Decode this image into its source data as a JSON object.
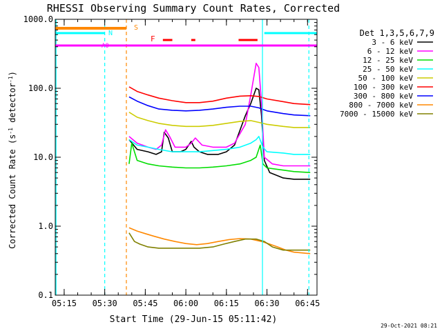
{
  "chart_data": {
    "type": "line",
    "title": "RHESSI Observing Summary Count Rates, Corrected",
    "xlabel": "Start Time (29-Jun-15 05:11:42)",
    "ylabel": "Corrected Count Rate (s⁻¹ detector⁻¹)",
    "ylabel_main": "Corrected Count Rate (s",
    "ylabel_sup1": "-1",
    "ylabel_mid": " detector",
    "ylabel_sup2": "-1",
    "ylabel_end": ")",
    "yscale": "log",
    "ylim": [
      0.1,
      1000
    ],
    "xlim": [
      "05:11:42",
      "06:48:30"
    ],
    "xticks": [
      "05:15",
      "05:30",
      "05:45",
      "06:00",
      "06:15",
      "06:30",
      "06:45"
    ],
    "yticks": [
      "0.1",
      "1.0",
      "10.0",
      "100.0",
      "1000.0"
    ],
    "footer": "29-Oct-2021 08:21",
    "legend": {
      "title": "Det 1,3,5,6,7,9",
      "position": "right",
      "entries": [
        {
          "label": "3 - 6 keV",
          "color": "#000000"
        },
        {
          "label": "6 - 12 keV",
          "color": "#ff00ff"
        },
        {
          "label": "12 - 25 keV",
          "color": "#00dd00"
        },
        {
          "label": "25 - 50 keV",
          "color": "#00ffff"
        },
        {
          "label": "50 - 100 keV",
          "color": "#cccc00"
        },
        {
          "label": "100 - 300 keV",
          "color": "#ff0000"
        },
        {
          "label": "300 - 800 keV",
          "color": "#0000ff"
        },
        {
          "label": "800 - 7000 keV",
          "color": "#ff8800"
        },
        {
          "label": "7000 - 15000 keV",
          "color": "#808000"
        }
      ]
    },
    "flags": {
      "S_label": "S",
      "N_label": "N",
      "F_label": "F",
      "AO_label": "A0",
      "S_bar": {
        "start": "05:11:42",
        "end": "05:38:00",
        "color": "#ff8800"
      },
      "N_bars": [
        {
          "start": "05:11:42",
          "end": "05:30:00",
          "color": "#00ffff"
        },
        {
          "start": "06:29:00",
          "end": "06:48:30",
          "color": "#00ffff"
        }
      ],
      "F_bars": [
        {
          "start": "05:51:30",
          "end": "05:55:00",
          "color": "#ff0000"
        },
        {
          "start": "06:02:00",
          "end": "06:03:30",
          "color": "#ff0000"
        },
        {
          "start": "06:19:30",
          "end": "06:26:30",
          "color": "#ff0000"
        }
      ],
      "AO_bar": {
        "start": "05:11:42",
        "end": "06:48:30",
        "color": "#ff00ff"
      }
    },
    "vlines": [
      {
        "time": "05:12:00",
        "color": "#00ffff",
        "dashed": false
      },
      {
        "time": "05:30:00",
        "color": "#00ffff",
        "dashed": true
      },
      {
        "time": "05:38:00",
        "color": "#ff8800",
        "dashed": true
      },
      {
        "time": "06:28:20",
        "color": "#00ffff",
        "dashed": false
      },
      {
        "time": "06:45:30",
        "color": "#00ffff",
        "dashed": true
      }
    ],
    "series": [
      {
        "name": "3 - 6 keV",
        "color": "#000000",
        "x": [
          "05:39:00",
          "05:42:00",
          "05:46:00",
          "05:49:00",
          "05:51:00",
          "05:52:00",
          "05:53:30",
          "05:55:00",
          "05:58:00",
          "06:00:00",
          "06:02:00",
          "06:03:00",
          "06:05:00",
          "06:08:00",
          "06:12:00",
          "06:15:00",
          "06:18:00",
          "06:22:00",
          "06:24:00",
          "06:26:00",
          "06:27:00",
          "06:28:00",
          "06:29:00",
          "06:31:00",
          "06:36:00",
          "06:40:00",
          "06:46:00"
        ],
        "y": [
          18,
          13,
          12,
          11,
          12,
          23,
          19,
          12,
          12,
          13,
          17,
          14,
          12,
          11,
          11,
          12,
          15,
          40,
          60,
          100,
          95,
          40,
          9,
          6,
          5,
          4.8,
          4.8
        ]
      },
      {
        "name": "6 - 12 keV",
        "color": "#ff00ff",
        "x": [
          "05:39:00",
          "05:42:00",
          "05:46:00",
          "05:49:00",
          "05:51:00",
          "05:52:30",
          "05:54:00",
          "05:56:00",
          "06:00:00",
          "06:02:00",
          "06:03:30",
          "06:06:00",
          "06:10:00",
          "06:15:00",
          "06:18:00",
          "06:22:00",
          "06:24:00",
          "06:26:00",
          "06:27:00",
          "06:28:00",
          "06:29:00",
          "06:32:00",
          "06:36:00",
          "06:40:00",
          "06:46:00"
        ],
        "y": [
          20,
          16,
          14,
          13,
          15,
          25,
          20,
          14,
          14,
          16,
          19,
          15,
          14,
          14,
          16,
          30,
          80,
          230,
          200,
          60,
          10,
          8,
          7.5,
          7.5,
          7.5
        ]
      },
      {
        "name": "12 - 25 keV",
        "color": "#00dd00",
        "x": [
          "05:39:00",
          "05:40:00",
          "05:42:00",
          "05:46:00",
          "05:50:00",
          "05:55:00",
          "06:00:00",
          "06:05:00",
          "06:10:00",
          "06:15:00",
          "06:20:00",
          "06:24:00",
          "06:26:00",
          "06:27:30",
          "06:28:30",
          "06:30:00",
          "06:36:00",
          "06:40:00",
          "06:46:00"
        ],
        "y": [
          8,
          16,
          9,
          8,
          7.5,
          7.2,
          7,
          7,
          7.2,
          7.5,
          8,
          9,
          10,
          15,
          8,
          7,
          6.5,
          6.2,
          6
        ]
      },
      {
        "name": "25 - 50 keV",
        "color": "#00ffff",
        "x": [
          "05:39:00",
          "05:42:00",
          "05:46:00",
          "05:50:00",
          "05:55:00",
          "06:00:00",
          "06:05:00",
          "06:10:00",
          "06:15:00",
          "06:20:00",
          "06:24:00",
          "06:26:00",
          "06:27:00",
          "06:28:30",
          "06:30:00",
          "06:36:00",
          "06:40:00",
          "06:46:00"
        ],
        "y": [
          18,
          15,
          14,
          13,
          12,
          12,
          12,
          12.5,
          13,
          14,
          16,
          18,
          20,
          14,
          12,
          11.5,
          11,
          11
        ]
      },
      {
        "name": "50 - 100 keV",
        "color": "#cccc00",
        "x": [
          "05:39:00",
          "05:42:00",
          "05:46:00",
          "05:50:00",
          "05:55:00",
          "06:00:00",
          "06:05:00",
          "06:10:00",
          "06:15:00",
          "06:20:00",
          "06:24:00",
          "06:27:00",
          "06:30:00",
          "06:36:00",
          "06:40:00",
          "06:46:00"
        ],
        "y": [
          45,
          38,
          34,
          31,
          29,
          28,
          28,
          29,
          31,
          33,
          34,
          32,
          30,
          28,
          27,
          27
        ]
      },
      {
        "name": "100 - 300 keV",
        "color": "#ff0000",
        "x": [
          "05:39:00",
          "05:42:00",
          "05:46:00",
          "05:50:00",
          "05:55:00",
          "06:00:00",
          "06:05:00",
          "06:10:00",
          "06:15:00",
          "06:20:00",
          "06:24:00",
          "06:27:00",
          "06:30:00",
          "06:36:00",
          "06:40:00",
          "06:46:00"
        ],
        "y": [
          105,
          90,
          80,
          72,
          66,
          62,
          62,
          65,
          72,
          77,
          78,
          76,
          70,
          64,
          60,
          58
        ]
      },
      {
        "name": "300 - 800 keV",
        "color": "#0000ff",
        "x": [
          "05:39:00",
          "05:42:00",
          "05:46:00",
          "05:50:00",
          "05:55:00",
          "06:00:00",
          "06:05:00",
          "06:10:00",
          "06:15:00",
          "06:20:00",
          "06:24:00",
          "06:27:00",
          "06:30:00",
          "06:36:00",
          "06:40:00",
          "06:46:00"
        ],
        "y": [
          75,
          65,
          56,
          50,
          48,
          47,
          48,
          50,
          53,
          55,
          55,
          52,
          47,
          43,
          41,
          40
        ]
      },
      {
        "name": "800 - 7000 keV",
        "color": "#ff8800",
        "x": [
          "05:39:00",
          "05:42:00",
          "05:45:00",
          "05:48:00",
          "05:52:00",
          "05:56:00",
          "06:00:00",
          "06:04:00",
          "06:08:00",
          "06:12:00",
          "06:16:00",
          "06:20:00",
          "06:24:00",
          "06:28:00",
          "06:31:00",
          "06:34:00",
          "06:37:00",
          "06:40:00",
          "06:46:00"
        ],
        "y": [
          0.95,
          0.85,
          0.78,
          0.72,
          0.65,
          0.6,
          0.56,
          0.54,
          0.56,
          0.6,
          0.64,
          0.66,
          0.65,
          0.6,
          0.55,
          0.5,
          0.45,
          0.42,
          0.4
        ]
      },
      {
        "name": "7000 - 15000 keV",
        "color": "#808000",
        "x": [
          "05:39:00",
          "05:41:00",
          "05:43:00",
          "05:46:00",
          "05:50:00",
          "05:55:00",
          "06:00:00",
          "06:05:00",
          "06:10:00",
          "06:14:00",
          "06:18:00",
          "06:22:00",
          "06:26:00",
          "06:29:00",
          "06:32:00",
          "06:36:00",
          "06:40:00",
          "06:46:00"
        ],
        "y": [
          0.8,
          0.6,
          0.55,
          0.5,
          0.48,
          0.48,
          0.48,
          0.48,
          0.5,
          0.55,
          0.6,
          0.65,
          0.65,
          0.6,
          0.5,
          0.45,
          0.45,
          0.45
        ]
      }
    ]
  }
}
